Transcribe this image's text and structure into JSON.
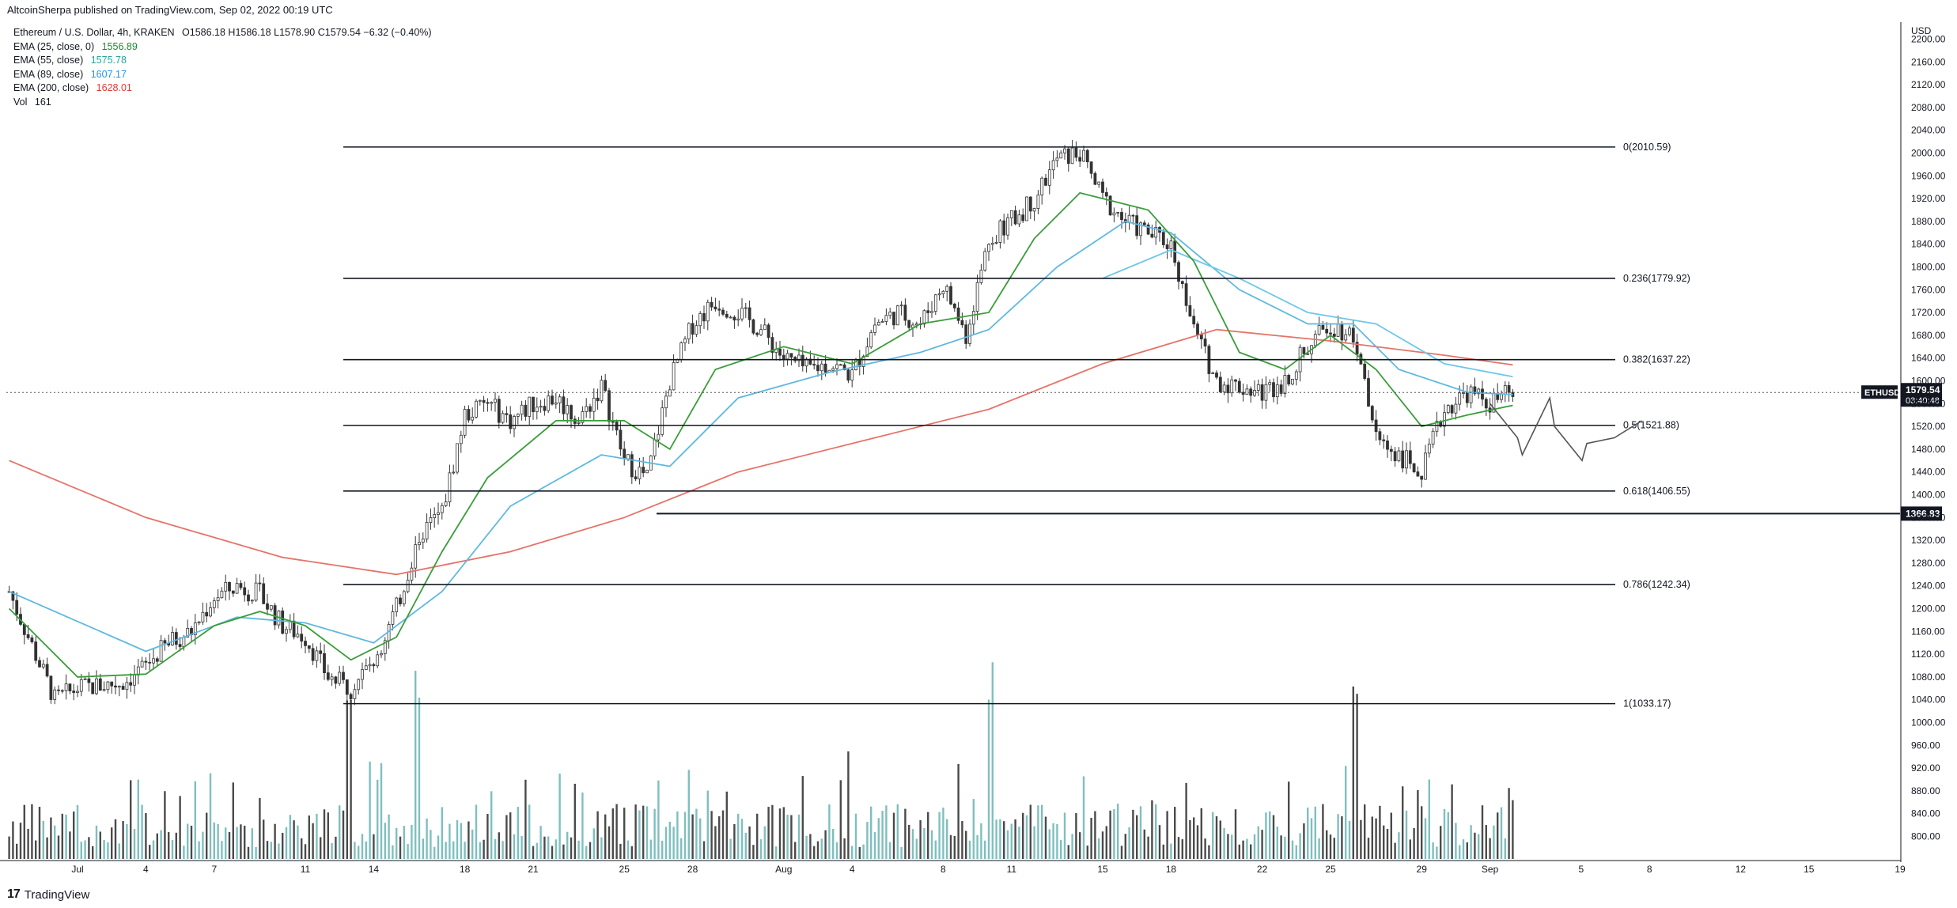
{
  "header": {
    "published": "AltcoinSherpa published on TradingView.com, Sep 02, 2022 00:19 UTC"
  },
  "legend": {
    "symbol_line": {
      "name": "Ethereum / U.S. Dollar, 4h, KRAKEN",
      "ohlc": "O1586.18  H1586.18  L1578.90  C1579.54  −6.32 (−0.40%)"
    },
    "ema25": {
      "label": "EMA (25, close, 0)",
      "value": "1556.89",
      "color": "#1b8a2e"
    },
    "ema55": {
      "label": "EMA (55, close)",
      "value": "1575.78",
      "color": "#26a69a"
    },
    "ema89": {
      "label": "EMA (89, close)",
      "value": "1607.17",
      "color": "#2196f3"
    },
    "ema200": {
      "label": "EMA (200, close)",
      "value": "1628.01",
      "color": "#e53935"
    },
    "volume": {
      "label": "Vol",
      "value": "161"
    }
  },
  "price_axis": {
    "currency": "USD",
    "current_price": "1579.54",
    "countdown": "03:40:48",
    "symbol_tag": "ETHUSD",
    "marked_level": "1366.83",
    "ticks": [
      "2200.00",
      "2160.00",
      "2120.00",
      "2080.00",
      "2040.00",
      "2000.00",
      "1960.00",
      "1920.00",
      "1880.00",
      "1840.00",
      "1800.00",
      "1760.00",
      "1720.00",
      "1680.00",
      "1640.00",
      "1600.00",
      "1560.00",
      "1520.00",
      "1480.00",
      "1440.00",
      "1400.00",
      "1360.00",
      "1320.00",
      "1280.00",
      "1240.00",
      "1200.00",
      "1160.00",
      "1120.00",
      "1080.00",
      "1040.00",
      "1000.00",
      "960.00",
      "920.00",
      "880.00",
      "840.00",
      "800.00"
    ]
  },
  "time_axis": {
    "ticks": [
      "Jul",
      "4",
      "7",
      "11",
      "14",
      "18",
      "21",
      "25",
      "28",
      "Aug",
      "4",
      "8",
      "11",
      "15",
      "18",
      "22",
      "25",
      "29",
      "Sep",
      "5",
      "8",
      "12",
      "15",
      "19"
    ]
  },
  "footer": {
    "brand": "TradingView"
  },
  "colors": {
    "up": "#7fbfbf",
    "down": "#4a4a4a",
    "fib_line": "#131722"
  },
  "chart_data": {
    "type": "candlestick",
    "symbol": "ETHUSD",
    "timeframe": "4h",
    "exchange": "KRAKEN",
    "ylim": [
      800,
      2220
    ],
    "fib_levels": [
      {
        "ratio": "0",
        "price": 2010.59,
        "label": "0(2010.59)"
      },
      {
        "ratio": "0.236",
        "price": 1779.92,
        "label": "0.236(1779.92)"
      },
      {
        "ratio": "0.382",
        "price": 1637.22,
        "label": "0.382(1637.22)"
      },
      {
        "ratio": "0.5",
        "price": 1521.88,
        "label": "0.5(1521.88)"
      },
      {
        "ratio": "0.618",
        "price": 1406.55,
        "label": "0.618(1406.55)"
      },
      {
        "ratio": "0.786",
        "price": 1242.34,
        "label": "0.786(1242.34)"
      },
      {
        "ratio": "1",
        "price": 1033.17,
        "label": "1(1033.17)"
      }
    ],
    "horizontal_level": 1366.83,
    "last_price": 1579.54,
    "price_path": [
      {
        "date": "Jun 28",
        "price": 1230
      },
      {
        "date": "Jun 29",
        "price": 1135
      },
      {
        "date": "Jun 30",
        "price": 1040
      },
      {
        "date": "Jul 1",
        "price": 1060
      },
      {
        "date": "Jul 2",
        "price": 1065
      },
      {
        "date": "Jul 3",
        "price": 1070
      },
      {
        "date": "Jul 4",
        "price": 1100
      },
      {
        "date": "Jul 5",
        "price": 1140
      },
      {
        "date": "Jul 6",
        "price": 1160
      },
      {
        "date": "Jul 7",
        "price": 1220
      },
      {
        "date": "Jul 8",
        "price": 1240
      },
      {
        "date": "Jul 9",
        "price": 1225
      },
      {
        "date": "Jul 10",
        "price": 1170
      },
      {
        "date": "Jul 11",
        "price": 1150
      },
      {
        "date": "Jul 12",
        "price": 1080
      },
      {
        "date": "Jul 13",
        "price": 1060
      },
      {
        "date": "Jul 14",
        "price": 1110
      },
      {
        "date": "Jul 15",
        "price": 1200
      },
      {
        "date": "Jul 16",
        "price": 1330
      },
      {
        "date": "Jul 17",
        "price": 1370
      },
      {
        "date": "Jul 18",
        "price": 1540
      },
      {
        "date": "Jul 19",
        "price": 1560
      },
      {
        "date": "Jul 20",
        "price": 1530
      },
      {
        "date": "Jul 21",
        "price": 1560
      },
      {
        "date": "Jul 22",
        "price": 1570
      },
      {
        "date": "Jul 23",
        "price": 1530
      },
      {
        "date": "Jul 24",
        "price": 1590
      },
      {
        "date": "Jul 25",
        "price": 1460
      },
      {
        "date": "Jul 26",
        "price": 1430
      },
      {
        "date": "Jul 27",
        "price": 1600
      },
      {
        "date": "Jul 28",
        "price": 1700
      },
      {
        "date": "Jul 29",
        "price": 1740
      },
      {
        "date": "Jul 30",
        "price": 1720
      },
      {
        "date": "Jul 31",
        "price": 1690
      },
      {
        "date": "Aug 1",
        "price": 1640
      },
      {
        "date": "Aug 2",
        "price": 1620
      },
      {
        "date": "Aug 3",
        "price": 1630
      },
      {
        "date": "Aug 4",
        "price": 1610
      },
      {
        "date": "Aug 5",
        "price": 1700
      },
      {
        "date": "Aug 6",
        "price": 1720
      },
      {
        "date": "Aug 7",
        "price": 1700
      },
      {
        "date": "Aug 8",
        "price": 1770
      },
      {
        "date": "Aug 9",
        "price": 1680
      },
      {
        "date": "Aug 10",
        "price": 1850
      },
      {
        "date": "Aug 11",
        "price": 1880
      },
      {
        "date": "Aug 12",
        "price": 1920
      },
      {
        "date": "Aug 13",
        "price": 1990
      },
      {
        "date": "Aug 14",
        "price": 2000
      },
      {
        "date": "Aug 15",
        "price": 1920
      },
      {
        "date": "Aug 16",
        "price": 1880
      },
      {
        "date": "Aug 17",
        "price": 1860
      },
      {
        "date": "Aug 18",
        "price": 1840
      },
      {
        "date": "Aug 19",
        "price": 1690
      },
      {
        "date": "Aug 20",
        "price": 1600
      },
      {
        "date": "Aug 21",
        "price": 1590
      },
      {
        "date": "Aug 22",
        "price": 1580
      },
      {
        "date": "Aug 23",
        "price": 1600
      },
      {
        "date": "Aug 24",
        "price": 1660
      },
      {
        "date": "Aug 25",
        "price": 1700
      },
      {
        "date": "Aug 26",
        "price": 1680
      },
      {
        "date": "Aug 27",
        "price": 1500
      },
      {
        "date": "Aug 28",
        "price": 1470
      },
      {
        "date": "Aug 29",
        "price": 1440
      },
      {
        "date": "Aug 30",
        "price": 1550
      },
      {
        "date": "Aug 31",
        "price": 1580
      },
      {
        "date": "Sep 1",
        "price": 1560
      },
      {
        "date": "Sep 2",
        "price": 1580
      }
    ],
    "ema25": [
      {
        "date": "Jun 28",
        "value": 1200
      },
      {
        "date": "Jul 1",
        "value": 1080
      },
      {
        "date": "Jul 4",
        "value": 1085
      },
      {
        "date": "Jul 7",
        "value": 1170
      },
      {
        "date": "Jul 9",
        "value": 1195
      },
      {
        "date": "Jul 11",
        "value": 1170
      },
      {
        "date": "Jul 13",
        "value": 1110
      },
      {
        "date": "Jul 15",
        "value": 1150
      },
      {
        "date": "Jul 17",
        "value": 1300
      },
      {
        "date": "Jul 19",
        "value": 1430
      },
      {
        "date": "Jul 22",
        "value": 1530
      },
      {
        "date": "Jul 25",
        "value": 1530
      },
      {
        "date": "Jul 27",
        "value": 1480
      },
      {
        "date": "Jul 29",
        "value": 1620
      },
      {
        "date": "Aug 1",
        "value": 1660
      },
      {
        "date": "Aug 4",
        "value": 1630
      },
      {
        "date": "Aug 7",
        "value": 1700
      },
      {
        "date": "Aug 10",
        "value": 1720
      },
      {
        "date": "Aug 12",
        "value": 1850
      },
      {
        "date": "Aug 14",
        "value": 1930
      },
      {
        "date": "Aug 17",
        "value": 1900
      },
      {
        "date": "Aug 19",
        "value": 1810
      },
      {
        "date": "Aug 21",
        "value": 1650
      },
      {
        "date": "Aug 23",
        "value": 1620
      },
      {
        "date": "Aug 25",
        "value": 1680
      },
      {
        "date": "Aug 27",
        "value": 1620
      },
      {
        "date": "Aug 29",
        "value": 1520
      },
      {
        "date": "Aug 31",
        "value": 1540
      },
      {
        "date": "Sep 2",
        "value": 1556.89
      }
    ],
    "ema55": [
      {
        "date": "Jun 28",
        "value": 1230
      },
      {
        "date": "Jul 4",
        "value": 1125
      },
      {
        "date": "Jul 8",
        "value": 1185
      },
      {
        "date": "Jul 11",
        "value": 1175
      },
      {
        "date": "Jul 14",
        "value": 1140
      },
      {
        "date": "Jul 17",
        "value": 1230
      },
      {
        "date": "Jul 20",
        "value": 1380
      },
      {
        "date": "Jul 24",
        "value": 1470
      },
      {
        "date": "Jul 27",
        "value": 1450
      },
      {
        "date": "Jul 30",
        "value": 1570
      },
      {
        "date": "Aug 3",
        "value": 1615
      },
      {
        "date": "Aug 7",
        "value": 1650
      },
      {
        "date": "Aug 10",
        "value": 1690
      },
      {
        "date": "Aug 13",
        "value": 1800
      },
      {
        "date": "Aug 16",
        "value": 1880
      },
      {
        "date": "Aug 18",
        "value": 1860
      },
      {
        "date": "Aug 21",
        "value": 1760
      },
      {
        "date": "Aug 24",
        "value": 1700
      },
      {
        "date": "Aug 26",
        "value": 1700
      },
      {
        "date": "Aug 28",
        "value": 1620
      },
      {
        "date": "Aug 31",
        "value": 1580
      },
      {
        "date": "Sep 2",
        "value": 1575.78
      }
    ],
    "ema89": [
      {
        "date": "Aug 15",
        "value": 1780
      },
      {
        "date": "Aug 18",
        "value": 1830
      },
      {
        "date": "Aug 21",
        "value": 1780
      },
      {
        "date": "Aug 24",
        "value": 1720
      },
      {
        "date": "Aug 27",
        "value": 1700
      },
      {
        "date": "Aug 30",
        "value": 1630
      },
      {
        "date": "Sep 2",
        "value": 1607.17
      }
    ],
    "ema200": [
      {
        "date": "Jun 28",
        "value": 1460
      },
      {
        "date": "Jul 4",
        "value": 1360
      },
      {
        "date": "Jul 10",
        "value": 1290
      },
      {
        "date": "Jul 15",
        "value": 1260
      },
      {
        "date": "Jul 20",
        "value": 1300
      },
      {
        "date": "Jul 25",
        "value": 1360
      },
      {
        "date": "Jul 30",
        "value": 1440
      },
      {
        "date": "Aug 5",
        "value": 1500
      },
      {
        "date": "Aug 10",
        "value": 1550
      },
      {
        "date": "Aug 15",
        "value": 1630
      },
      {
        "date": "Aug 20",
        "value": 1690
      },
      {
        "date": "Aug 25",
        "value": 1670
      },
      {
        "date": "Aug 30",
        "value": 1645
      },
      {
        "date": "Sep 2",
        "value": 1628.01
      }
    ],
    "projection": [
      {
        "date": "Sep 1",
        "price": 1560
      },
      {
        "date": "Sep 2",
        "price": 1500
      },
      {
        "date": "Sep 2",
        "price": 1470
      },
      {
        "date": "Sep 3",
        "price": 1570
      },
      {
        "date": "Sep 3",
        "price": 1520
      },
      {
        "date": "Sep 4",
        "price": 1460
      },
      {
        "date": "Sep 4",
        "price": 1490
      },
      {
        "date": "Sep 5",
        "price": 1500
      },
      {
        "date": "Sep 6",
        "price": 1530
      }
    ],
    "volume_peaks": [
      {
        "date": "Jul 13",
        "value": "high"
      },
      {
        "date": "Jul 16",
        "value": "high"
      },
      {
        "date": "Aug 10",
        "value": "high"
      },
      {
        "date": "Aug 26",
        "value": "high"
      }
    ]
  }
}
